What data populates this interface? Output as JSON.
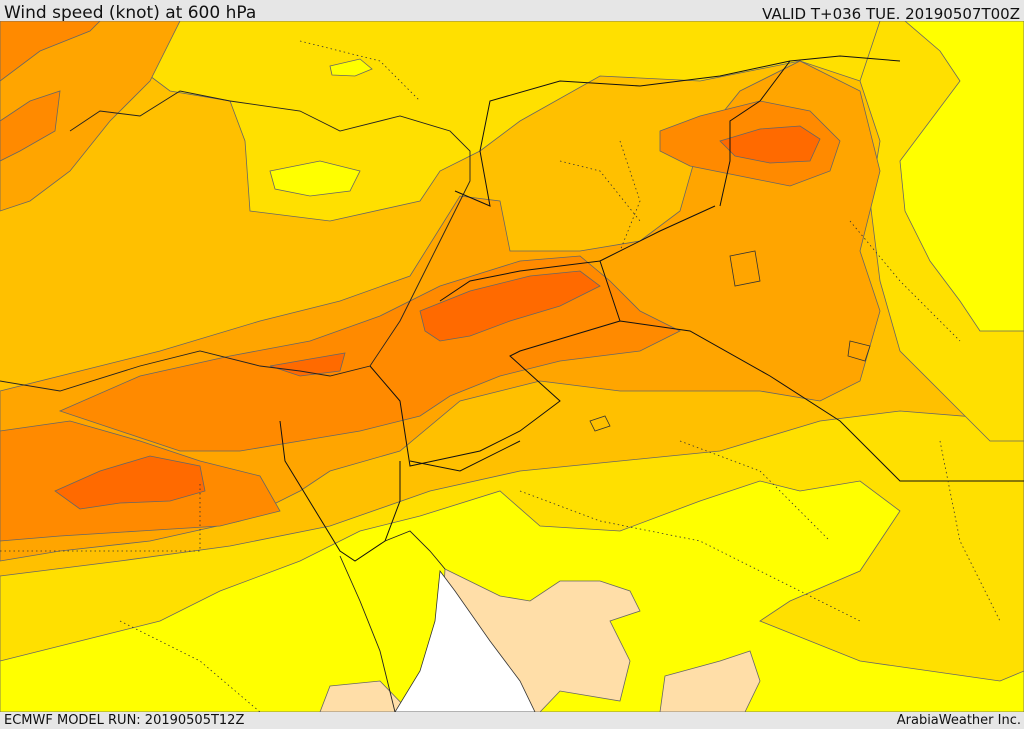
{
  "header": {
    "title": "Wind speed (knot) at 600 hPa",
    "valid": "VALID T+036 TUE. 20190507T00Z"
  },
  "footer": {
    "model_run": "ECMWF MODEL RUN: 20190505T12Z",
    "credit": "ArabiaWeather Inc."
  },
  "map": {
    "field": "wind-speed",
    "level_hpa": 600,
    "colors": {
      "calm": "#ffff00",
      "light": "#ffe000",
      "moderate": "#ffc000",
      "strong": "#ffa500",
      "stronger": "#ff8a00",
      "strongest": "#ff6a00",
      "land_low_wind": "#ffdea8",
      "sea": "#ffffff",
      "border": "#111111",
      "contour": "#555555"
    }
  }
}
